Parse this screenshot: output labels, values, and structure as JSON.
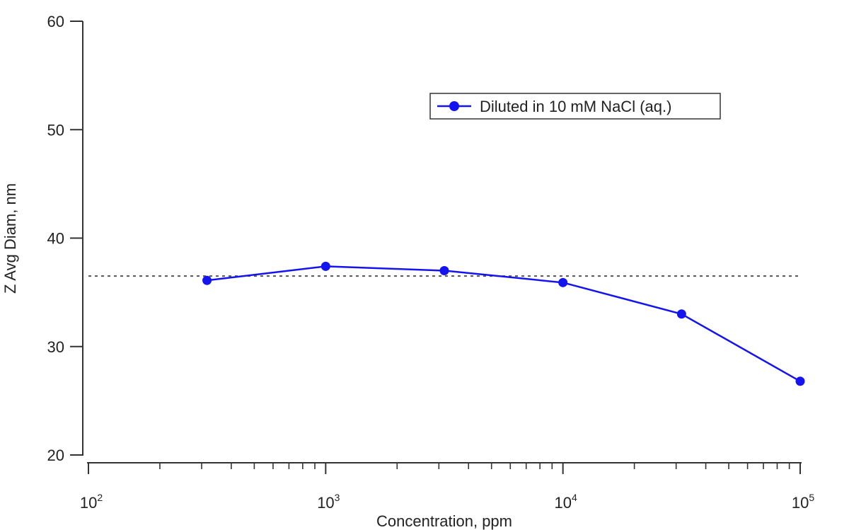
{
  "chart_data": {
    "type": "line",
    "title": "",
    "xlabel": "Concentration, ppm",
    "ylabel": "Z Avg Diam, nm",
    "x_scale": "log",
    "xlim": [
      100,
      100000
    ],
    "ylim": [
      20,
      60
    ],
    "x_ticks": [
      {
        "value": 100,
        "base": "10",
        "exp": "2"
      },
      {
        "value": 1000,
        "base": "10",
        "exp": "3"
      },
      {
        "value": 10000,
        "base": "10",
        "exp": "4"
      },
      {
        "value": 100000,
        "base": "10",
        "exp": "5"
      }
    ],
    "y_ticks": [
      20,
      30,
      40,
      50,
      60
    ],
    "y_tick_labels": [
      "20",
      "30",
      "40",
      "50",
      "60"
    ],
    "grid": false,
    "legend_position": "top-right",
    "reference_line": {
      "y": 36.5,
      "style": "dotted",
      "color": "#555555"
    },
    "series": [
      {
        "name": "Diluted in 10 mM NaCl (aq.)",
        "color": "#1414f0",
        "marker": "circle",
        "x": [
          316,
          1000,
          3162,
          10000,
          31623,
          100000
        ],
        "y": [
          36.1,
          37.4,
          37.0,
          35.9,
          33.0,
          26.8
        ]
      }
    ]
  }
}
